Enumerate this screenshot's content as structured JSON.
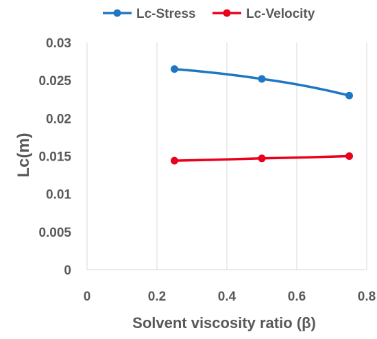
{
  "chart_data": {
    "type": "line",
    "title": "",
    "xlabel": "Solvent viscosity ratio (β)",
    "ylabel": "Lc(m)",
    "xlim": [
      0,
      0.8
    ],
    "ylim": [
      0,
      0.03
    ],
    "x_ticks": [
      "0",
      "0.2",
      "0.4",
      "0.6",
      "0.8"
    ],
    "y_ticks": [
      "0",
      "0.005",
      "0.01",
      "0.015",
      "0.02",
      "0.025",
      "0.03"
    ],
    "grid": "vertical",
    "legend_position": "top",
    "series": [
      {
        "name": "Lc-Stress",
        "color": "#1f77c4",
        "x": [
          0.25,
          0.5,
          0.75
        ],
        "y": [
          0.0265,
          0.0252,
          0.023
        ]
      },
      {
        "name": "Lc-Velocity",
        "color": "#e8001c",
        "x": [
          0.25,
          0.5,
          0.75
        ],
        "y": [
          0.0144,
          0.0147,
          0.015
        ]
      }
    ]
  }
}
